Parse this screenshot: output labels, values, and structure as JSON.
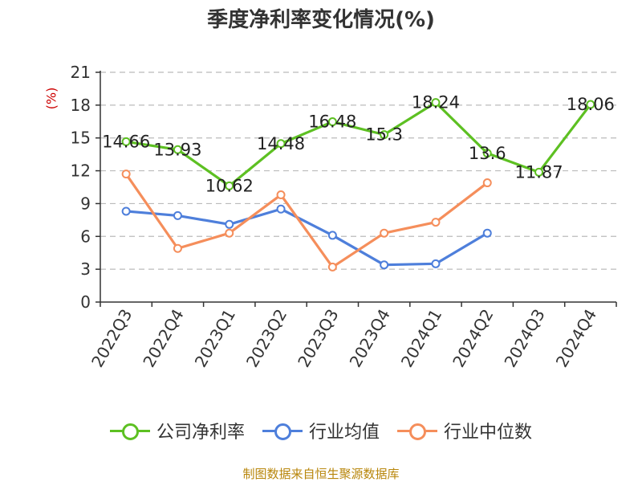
{
  "title": "季度净利率变化情况(%)",
  "unit_label": "(%)",
  "source": "制图数据来自恒生聚源数据库",
  "colors": {
    "company": "#5dc022",
    "industry_avg": "#4e7fdb",
    "industry_median": "#f58e5b",
    "grid": "#bbbbbb",
    "axis": "#333333"
  },
  "chart_data": {
    "type": "line",
    "title": "季度净利率变化情况(%)",
    "xlabel": "",
    "ylabel": "(%)",
    "categories": [
      "2022Q3",
      "2022Q4",
      "2023Q1",
      "2023Q2",
      "2023Q3",
      "2023Q4",
      "2024Q1",
      "2024Q2",
      "2024Q3",
      "2024Q4"
    ],
    "ylim": [
      0,
      21
    ],
    "yticks": [
      0,
      3,
      6,
      9,
      12,
      15,
      18,
      21
    ],
    "grid": true,
    "legend_position": "bottom",
    "series": [
      {
        "name": "公司净利率",
        "key": "company",
        "values": [
          14.66,
          13.93,
          10.62,
          14.48,
          16.48,
          15.3,
          18.24,
          13.6,
          11.87,
          18.06
        ],
        "labels": [
          "14.66",
          "13.93",
          "10.62",
          "14.48",
          "16.48",
          "15.3",
          "18.24",
          "13.6",
          "11.87",
          "18.06"
        ]
      },
      {
        "name": "行业均值",
        "key": "industry_avg",
        "values": [
          8.3,
          7.9,
          7.1,
          8.5,
          6.1,
          3.4,
          3.5,
          6.3,
          null,
          null
        ]
      },
      {
        "name": "行业中位数",
        "key": "industry_median",
        "values": [
          11.7,
          4.9,
          6.3,
          9.8,
          3.2,
          6.3,
          7.3,
          10.9,
          null,
          null
        ]
      }
    ]
  }
}
